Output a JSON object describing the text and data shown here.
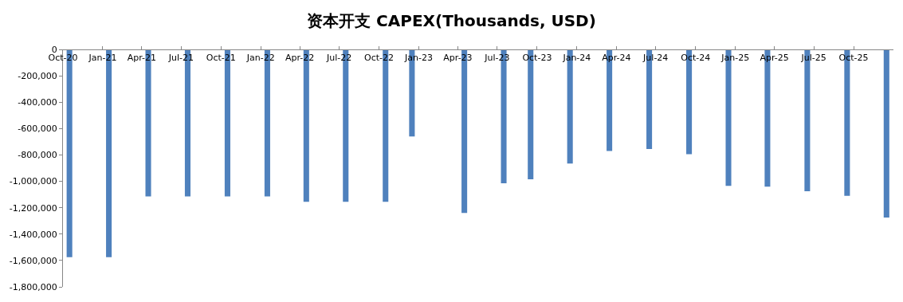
{
  "chart_data": {
    "type": "bar",
    "title": "资本开支 CAPEX(Thousands, USD)",
    "x": [
      "2020-10-16",
      "2021-01-15",
      "2021-04-16",
      "2021-07-16",
      "2021-10-16",
      "2022-01-16",
      "2022-04-16",
      "2022-07-16",
      "2022-10-16",
      "2022-12-16",
      "2023-04-16",
      "2023-07-16",
      "2023-09-16",
      "2023-12-16",
      "2024-03-16",
      "2024-06-16",
      "2024-09-16",
      "2024-12-16",
      "2025-03-16",
      "2025-06-16",
      "2025-09-16",
      "2025-12-16"
    ],
    "values": [
      -1575000,
      -1575000,
      -1115000,
      -1115000,
      -1115000,
      -1115000,
      -1155000,
      -1155000,
      -1155000,
      -660000,
      -1240000,
      -1015000,
      -985000,
      -865000,
      -770000,
      -755000,
      -795000,
      -1035000,
      -1040000,
      -1075000,
      -1110000,
      -1275000
    ],
    "color": "#4f81bd",
    "xlim": [
      "2020-10",
      "2026-01"
    ],
    "xticks": [
      {
        "value": "2020-10",
        "label": "Oct-20"
      },
      {
        "value": "2021-01",
        "label": "Jan-21"
      },
      {
        "value": "2021-04",
        "label": "Apr-21"
      },
      {
        "value": "2021-07",
        "label": "Jul-21"
      },
      {
        "value": "2021-10",
        "label": "Oct-21"
      },
      {
        "value": "2022-01",
        "label": "Jan-22"
      },
      {
        "value": "2022-04",
        "label": "Apr-22"
      },
      {
        "value": "2022-07",
        "label": "Jul-22"
      },
      {
        "value": "2022-10",
        "label": "Oct-22"
      },
      {
        "value": "2023-01",
        "label": "Jan-23"
      },
      {
        "value": "2023-04",
        "label": "Apr-23"
      },
      {
        "value": "2023-07",
        "label": "Jul-23"
      },
      {
        "value": "2023-10",
        "label": "Oct-23"
      },
      {
        "value": "2024-01",
        "label": "Jan-24"
      },
      {
        "value": "2024-04",
        "label": "Apr-24"
      },
      {
        "value": "2024-07",
        "label": "Jul-24"
      },
      {
        "value": "2024-10",
        "label": "Oct-24"
      },
      {
        "value": "2025-01",
        "label": "Jan-25"
      },
      {
        "value": "2025-04",
        "label": "Apr-25"
      },
      {
        "value": "2025-07",
        "label": "Jul-25"
      },
      {
        "value": "2025-10",
        "label": "Oct-25"
      }
    ],
    "ylim": [
      -1800000,
      0
    ],
    "yticks": [
      0,
      {
        "value": -200000,
        "label": "-200,000"
      },
      {
        "value": -400000,
        "label": "-400,000"
      },
      {
        "value": -600000,
        "label": "-600,000"
      },
      {
        "value": -800000,
        "label": "-800,000"
      },
      {
        "value": -1000000,
        "label": "-1,000,000"
      },
      {
        "value": -1200000,
        "label": "-1,200,000"
      },
      {
        "value": -1400000,
        "label": "-1,400,000"
      },
      {
        "value": -1600000,
        "label": "-1,600,000"
      },
      {
        "value": -1800000,
        "label": "-1,800,000"
      }
    ]
  }
}
